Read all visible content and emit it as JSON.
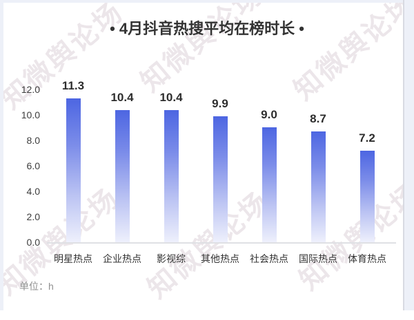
{
  "title": "• 4月抖音热搜平均在榜时长 •",
  "unit_label": "单位：h",
  "watermark": {
    "text": "知微舆论场"
  },
  "colors": {
    "bar_top": "#4d66e2",
    "bar_fade": "#eef0fc",
    "title_text": "#333333",
    "value_text": "#2d2d2d",
    "unit_text": "#8f8f8f",
    "axis_line": "#dfe0e4",
    "page_edge": "#edf0f8"
  },
  "chart_data": {
    "type": "bar",
    "title": "4月抖音热搜平均在榜时长",
    "categories": [
      "明星热点",
      "企业热点",
      "影视综",
      "其他热点",
      "社会热点",
      "国际热点",
      "体育热点"
    ],
    "values": [
      11.3,
      10.4,
      10.4,
      9.9,
      9.0,
      8.7,
      7.2
    ],
    "value_labels": [
      "11.3",
      "10.4",
      "10.4",
      "9.9",
      "9.0",
      "8.7",
      "7.2"
    ],
    "unit": "h",
    "xlabel": "",
    "ylabel": "",
    "ylim": [
      0,
      12
    ],
    "yticks": [
      12.0,
      10.0,
      8.0,
      6.0,
      4.0,
      2.0,
      0.0
    ],
    "ytick_labels": [
      "12.0",
      "10.0",
      "8.0",
      "6.0",
      "4.0",
      "2.0",
      "0.0"
    ],
    "grid": false,
    "legend": null,
    "bar_gradient": "blue fading to white toward baseline"
  }
}
